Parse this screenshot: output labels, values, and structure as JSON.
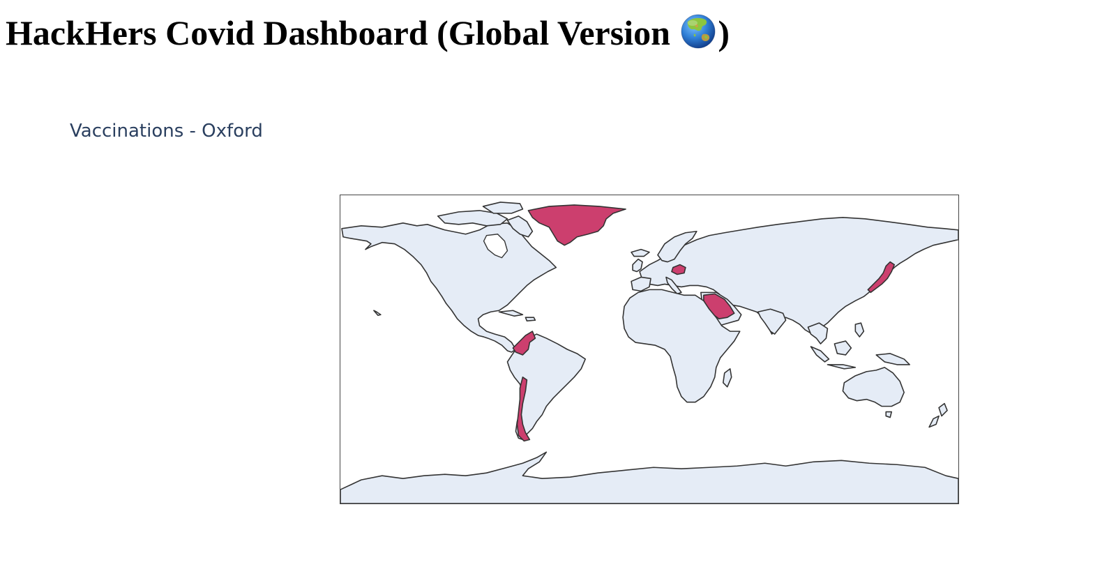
{
  "page": {
    "title_text": "HackHers Covid Dashboard (Global Version ",
    "title_suffix": ")",
    "title_icon": "globe-asia-australia-icon"
  },
  "map": {
    "title": "Vaccinations - Oxford",
    "projection": "equirectangular",
    "land_color": "#e5ecf6",
    "border_color": "#333333",
    "highlight_color": "#cc3f6e",
    "highlighted_countries": [
      {
        "id": "GRL",
        "name": "Greenland"
      },
      {
        "id": "HUN",
        "name": "Hungary"
      },
      {
        "id": "SAU",
        "name": "Saudi Arabia"
      },
      {
        "id": "JPN",
        "name": "Japan"
      },
      {
        "id": "COL",
        "name": "Colombia"
      },
      {
        "id": "CHL",
        "name": "Chile"
      }
    ]
  }
}
